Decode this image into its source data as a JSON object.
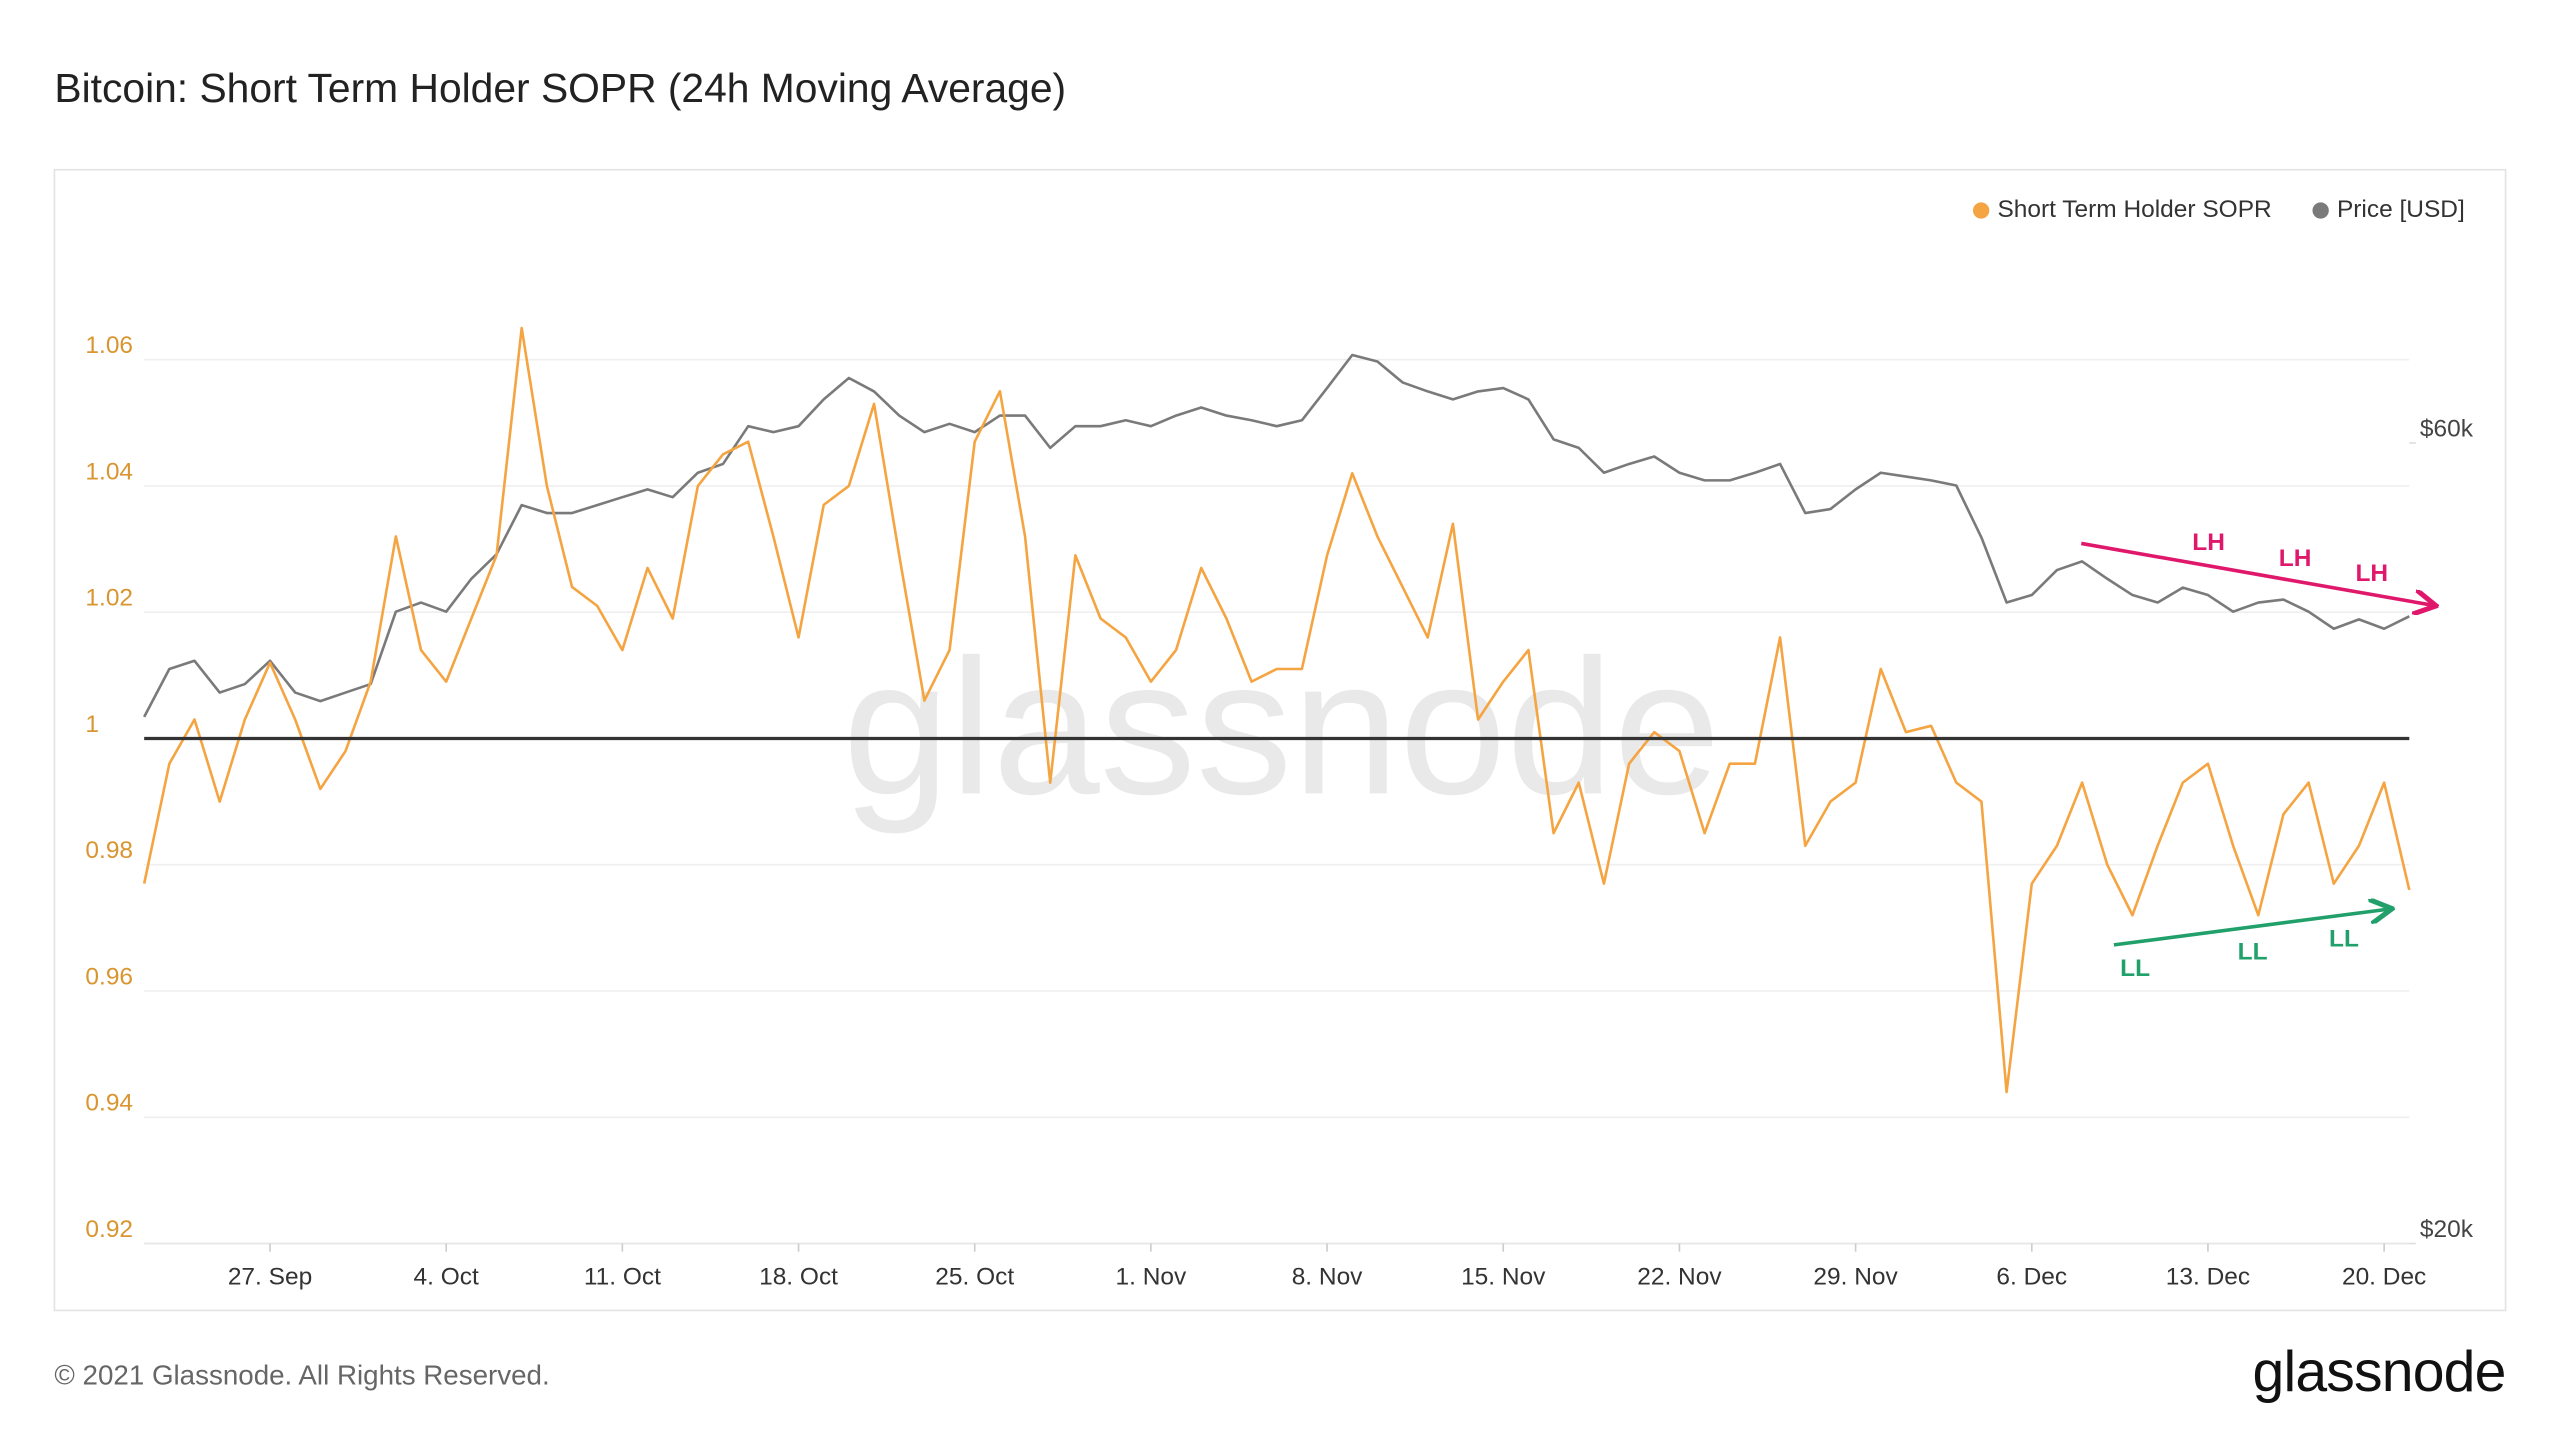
{
  "chart_data": {
    "type": "line",
    "title": "Bitcoin: Short Term Holder SOPR (24h Moving Average)",
    "categories": [
      null,
      null,
      null,
      null,
      null,
      "27. Sep",
      null,
      null,
      null,
      null,
      null,
      null,
      "4. Oct",
      null,
      null,
      null,
      null,
      null,
      null,
      "11. Oct",
      null,
      null,
      null,
      null,
      null,
      null,
      "18. Oct",
      null,
      null,
      null,
      null,
      null,
      null,
      "25. Oct",
      null,
      null,
      null,
      null,
      null,
      null,
      "1. Nov",
      null,
      null,
      null,
      null,
      null,
      null,
      "8. Nov",
      null,
      null,
      null,
      null,
      null,
      null,
      "15. Nov",
      null,
      null,
      null,
      null,
      null,
      null,
      "22. Nov",
      null,
      null,
      null,
      null,
      null,
      null,
      "29. Nov",
      null,
      null,
      null,
      null,
      null,
      null,
      "6. Dec",
      null,
      null,
      null,
      null,
      null,
      null,
      "13. Dec",
      null,
      null,
      null,
      null,
      null,
      null,
      "20. Dec",
      null
    ],
    "series": [
      {
        "name": "Short Term Holder SOPR",
        "color": "#f5a442",
        "values": [
          0.977,
          0.996,
          1.003,
          0.99,
          1.003,
          1.012,
          1.003,
          0.992,
          0.998,
          1.009,
          1.032,
          1.014,
          1.009,
          1.019,
          1.029,
          1.065,
          1.04,
          1.024,
          1.021,
          1.014,
          1.027,
          1.019,
          1.04,
          1.045,
          1.047,
          1.032,
          1.016,
          1.037,
          1.04,
          1.053,
          1.029,
          1.006,
          1.014,
          1.047,
          1.055,
          1.032,
          0.993,
          1.029,
          1.019,
          1.016,
          1.009,
          1.014,
          1.027,
          1.019,
          1.009,
          1.011,
          1.011,
          1.029,
          1.042,
          1.032,
          1.024,
          1.016,
          1.034,
          1.003,
          1.009,
          1.014,
          0.985,
          0.993,
          0.977,
          0.996,
          1.001,
          0.998,
          0.985,
          0.996,
          0.996,
          1.016,
          0.983,
          0.99,
          0.993,
          1.011,
          1.001,
          1.002,
          0.993,
          0.99,
          0.944,
          0.977,
          0.983,
          0.993,
          0.98,
          0.972,
          0.983,
          0.993,
          0.996,
          0.983,
          0.972,
          0.988,
          0.993,
          0.977,
          0.983,
          0.993,
          0.976
        ]
      },
      {
        "name": "Price [USD]",
        "color": "#7a7a7a",
        "axis": "y2",
        "values": [
          41200,
          44000,
          44500,
          42600,
          43100,
          44500,
          42600,
          42100,
          42600,
          43100,
          47600,
          48200,
          47600,
          49800,
          51500,
          55100,
          54500,
          54500,
          55100,
          55700,
          56300,
          55700,
          57600,
          58300,
          61400,
          60900,
          61400,
          63700,
          65600,
          64400,
          62300,
          60900,
          61600,
          60900,
          62300,
          62300,
          59600,
          61400,
          61400,
          61900,
          61400,
          62300,
          63000,
          62300,
          61900,
          61400,
          61900,
          64700,
          67700,
          67100,
          65200,
          64400,
          63700,
          64400,
          64700,
          63700,
          60300,
          59600,
          57600,
          58300,
          58900,
          57600,
          57000,
          57000,
          57600,
          58300,
          54500,
          54800,
          56300,
          57600,
          57300,
          57000,
          56600,
          52700,
          48200,
          48700,
          50400,
          51000,
          49800,
          48700,
          48200,
          49200,
          48700,
          47600,
          48200,
          48400,
          47600,
          46500,
          47100,
          46500,
          47300
        ]
      }
    ],
    "ylim": [
      0.92,
      1.08
    ],
    "yticks": [
      0.92,
      0.94,
      0.96,
      0.98,
      1,
      1.02,
      1.04,
      1.06
    ],
    "y2lim": [
      20000,
      80000
    ],
    "y2ticks": [
      {
        "value": 20000,
        "label": "$20k"
      },
      {
        "value": 60000,
        "label": "$60k"
      }
    ],
    "y2log": true,
    "grid": true,
    "hline": 1,
    "legend": "top-right",
    "annotations": [
      "LH",
      "LH",
      "LH",
      "LL",
      "LL",
      "LL"
    ],
    "watermark": "glassnode",
    "footer": "© 2021 Glassnode. All Rights Reserved.",
    "brand": "glassnode"
  }
}
